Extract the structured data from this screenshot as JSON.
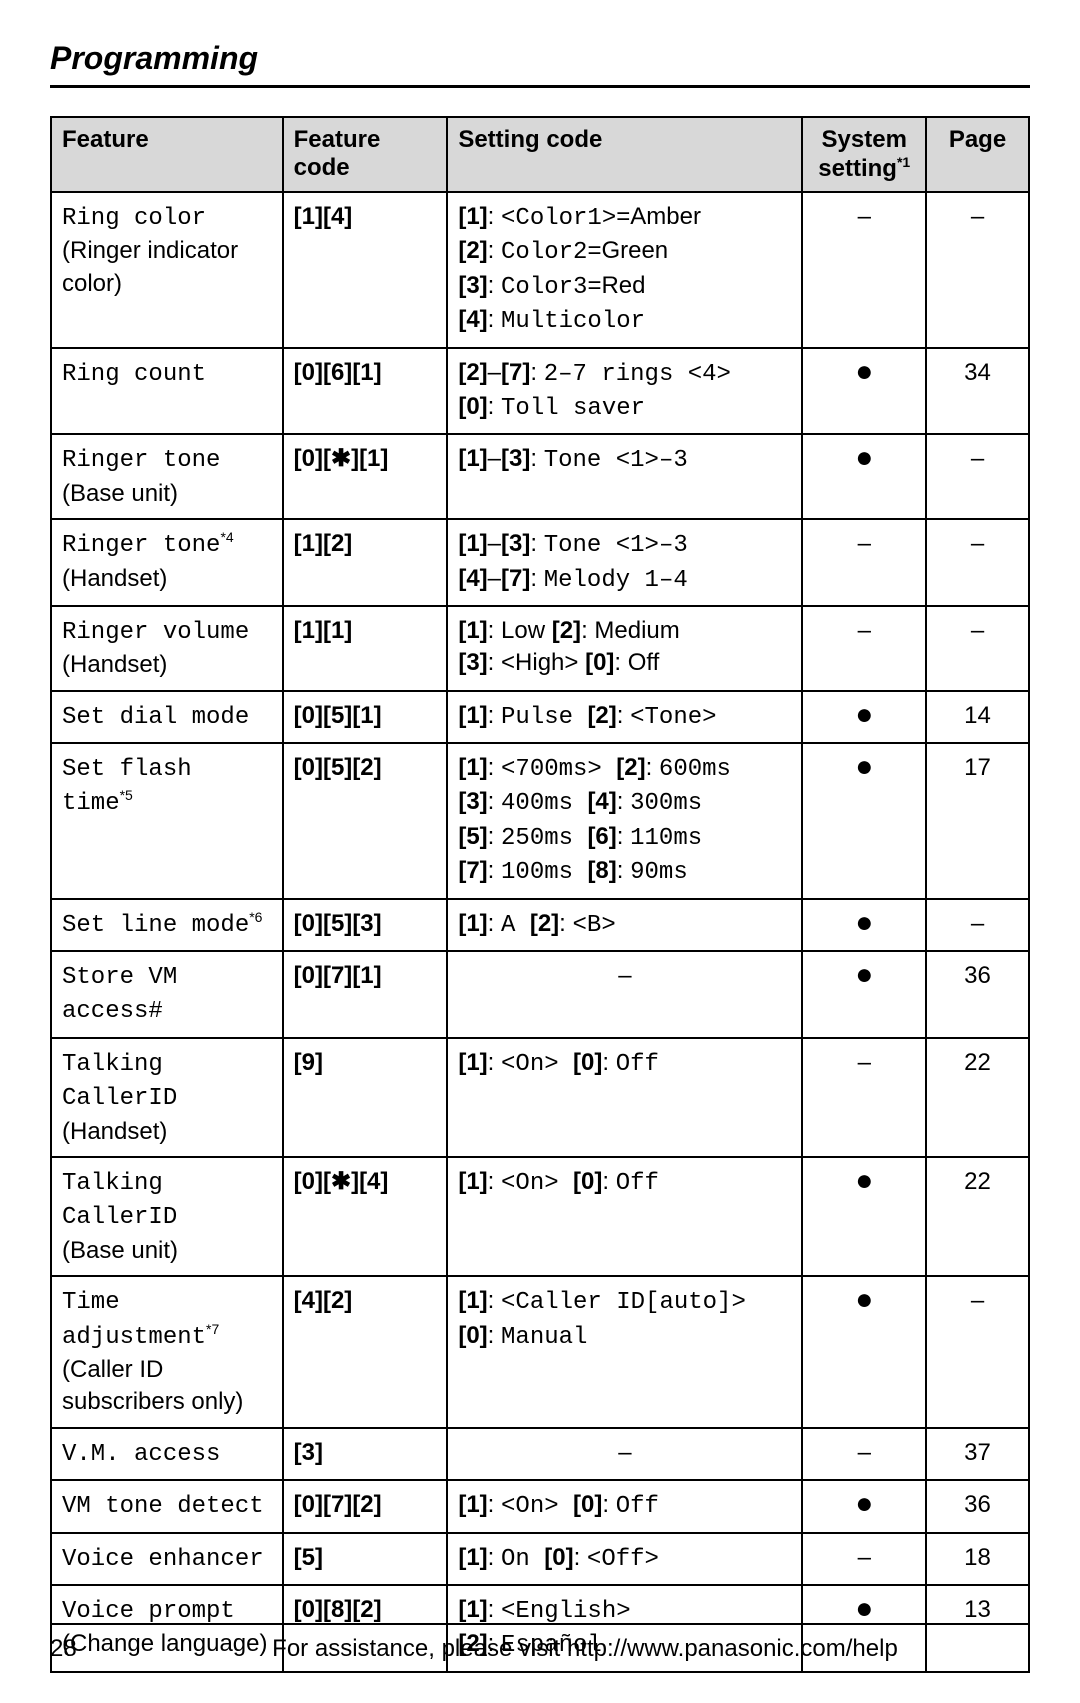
{
  "title": "Programming",
  "page_number": "28",
  "footer_text": "For assistance, please visit http://www.panasonic.com/help",
  "columns": {
    "feature": "Feature",
    "feature_code": "Feature code",
    "setting_code": "Setting code",
    "system_setting": "System setting",
    "system_setting_sup": "*1",
    "page": "Page"
  },
  "rows": [
    {
      "feature_mono": "Ring color",
      "feature_sans": "(Ringer indicator color)",
      "fcode_keys": "[1][4]",
      "setting_lines": [
        {
          "keys": "[1]",
          "colon": ": ",
          "mono": "<Color1>",
          "rest": "=Amber"
        },
        {
          "keys": "[2]",
          "colon": ": ",
          "mono": "Color2",
          "rest": "=Green"
        },
        {
          "keys": "[3]",
          "colon": ": ",
          "mono": "Color3",
          "rest": "=Red"
        },
        {
          "keys": "[4]",
          "colon": ": ",
          "mono": "Multicolor",
          "rest": ""
        }
      ],
      "system": "–",
      "page": "–"
    },
    {
      "feature_mono": "Ring count",
      "feature_sans": "",
      "fcode_keys": "[0][6][1]",
      "setting_lines": [
        {
          "keys": "[2]–[7]",
          "colon": ": ",
          "mono": "2–7 rings <4>",
          "rest": ""
        },
        {
          "keys": "[0]",
          "colon": ": ",
          "mono": "Toll saver",
          "rest": ""
        }
      ],
      "system": "●",
      "page": "34"
    },
    {
      "feature_mono": "Ringer tone",
      "feature_sans": "(Base unit)",
      "fcode_keys": "[0][✱][1]",
      "setting_lines": [
        {
          "keys": "[1]–[3]",
          "colon": ": ",
          "mono": "Tone <1>–3",
          "rest": ""
        }
      ],
      "system": "●",
      "page": "–"
    },
    {
      "feature_mono": "Ringer tone",
      "feature_sup": "*4",
      "feature_sans": "(Handset)",
      "fcode_keys": "[1][2]",
      "setting_lines": [
        {
          "keys": "[1]–[3]",
          "colon": ": ",
          "mono": "Tone <1>–3",
          "rest": ""
        },
        {
          "keys": "[4]–[7]",
          "colon": ": ",
          "mono": "Melody 1–4",
          "rest": ""
        }
      ],
      "system": "–",
      "page": "–"
    },
    {
      "feature_mono": "Ringer volume",
      "feature_sans": "(Handset)",
      "fcode_keys": "[1][1]",
      "setting_lines": [
        {
          "keys": "[1]",
          "colon": ": ",
          "mono": "",
          "rest": "Low ",
          "keys2": "[2]",
          "colon2": ": ",
          "rest2": "Medium"
        },
        {
          "keys": "[3]",
          "colon": ": ",
          "mono": "",
          "rest": "<High> ",
          "keys2": "[0]",
          "colon2": ": ",
          "rest2": "Off"
        }
      ],
      "system": "–",
      "page": "–"
    },
    {
      "feature_mono": "Set dial mode",
      "feature_sans": "",
      "fcode_keys": "[0][5][1]",
      "setting_lines": [
        {
          "keys": "[1]",
          "colon": ": ",
          "mono": "Pulse ",
          "rest": "",
          "keys2": "[2]",
          "colon2": ": ",
          "mono2": "<Tone>",
          "rest2": ""
        }
      ],
      "system": "●",
      "page": "14"
    },
    {
      "feature_mono": "Set flash time",
      "feature_sup": "*5",
      "feature_sans": "",
      "fcode_keys": "[0][5][2]",
      "setting_lines": [
        {
          "keys": "[1]",
          "colon": ": ",
          "mono": "<700ms> ",
          "rest": "",
          "keys2": "[2]",
          "colon2": ": ",
          "mono2": "600ms",
          "rest2": ""
        },
        {
          "keys": "[3]",
          "colon": ": ",
          "mono": "400ms ",
          "rest": "",
          "keys2": "[4]",
          "colon2": ": ",
          "mono2": "300ms",
          "rest2": ""
        },
        {
          "keys": "[5]",
          "colon": ": ",
          "mono": "250ms ",
          "rest": "",
          "keys2": "[6]",
          "colon2": ": ",
          "mono2": "110ms",
          "rest2": ""
        },
        {
          "keys": "[7]",
          "colon": ": ",
          "mono": "100ms ",
          "rest": "",
          "keys2": "[8]",
          "colon2": ": ",
          "mono2": "90ms",
          "rest2": ""
        }
      ],
      "system": "●",
      "page": "17"
    },
    {
      "feature_mono": "Set line mode",
      "feature_sup": "*6",
      "feature_sans": "",
      "fcode_keys": "[0][5][3]",
      "setting_lines": [
        {
          "keys": "[1]",
          "colon": ": ",
          "mono": "A ",
          "rest": "",
          "keys2": "[2]",
          "colon2": ": ",
          "mono2": "<B>",
          "rest2": ""
        }
      ],
      "system": "●",
      "page": "–"
    },
    {
      "feature_mono": "Store VM access#",
      "feature_sans": "",
      "fcode_keys": "[0][7][1]",
      "setting_plain": "–",
      "system": "●",
      "page": "36"
    },
    {
      "feature_mono": "Talking CallerID",
      "feature_sans": "(Handset)",
      "fcode_keys": "[9]",
      "setting_lines": [
        {
          "keys": "[1]",
          "colon": ": ",
          "mono": "<On> ",
          "rest": "",
          "keys2": "[0]",
          "colon2": ": ",
          "mono2": "Off",
          "rest2": ""
        }
      ],
      "system": "–",
      "page": "22"
    },
    {
      "feature_mono": "Talking CallerID",
      "feature_sans": "(Base unit)",
      "fcode_keys": "[0][✱][4]",
      "setting_lines": [
        {
          "keys": "[1]",
          "colon": ": ",
          "mono": "<On> ",
          "rest": "",
          "keys2": "[0]",
          "colon2": ": ",
          "mono2": "Off",
          "rest2": ""
        }
      ],
      "system": "●",
      "page": "22"
    },
    {
      "feature_mono": "Time adjustment",
      "feature_sup": "*7",
      "feature_sans": "(Caller ID subscribers only)",
      "fcode_keys": "[4][2]",
      "setting_lines": [
        {
          "keys": "[1]",
          "colon": ": ",
          "mono": "<Caller ID[auto]>",
          "rest": ""
        },
        {
          "keys": "[0]",
          "colon": ": ",
          "mono": "Manual",
          "rest": ""
        }
      ],
      "system": "●",
      "page": "–"
    },
    {
      "feature_mono": "V.M. access",
      "feature_sans": "",
      "fcode_keys": "[3]",
      "setting_plain": "–",
      "system": "–",
      "page": "37"
    },
    {
      "feature_mono": "VM tone detect",
      "feature_sans": "",
      "fcode_keys": "[0][7][2]",
      "setting_lines": [
        {
          "keys": "[1]",
          "colon": ": ",
          "mono": "<On> ",
          "rest": "",
          "keys2": "[0]",
          "colon2": ": ",
          "mono2": "Off",
          "rest2": ""
        }
      ],
      "system": "●",
      "page": "36"
    },
    {
      "feature_mono": "Voice enhancer",
      "feature_sans": "",
      "fcode_keys": "[5]",
      "setting_lines": [
        {
          "keys": "[1]",
          "colon": ": ",
          "mono": "On ",
          "rest": "",
          "keys2": "[0]",
          "colon2": ": ",
          "mono2": "<Off>",
          "rest2": ""
        }
      ],
      "system": "–",
      "page": "18"
    },
    {
      "feature_mono": "Voice prompt",
      "feature_sans": "(Change language)",
      "fcode_keys": "[0][8][2]",
      "setting_lines": [
        {
          "keys": "[1]",
          "colon": ": ",
          "mono": "<English>",
          "rest": ""
        },
        {
          "keys": "[2]",
          "colon": ": ",
          "mono": "Español",
          "rest": ""
        }
      ],
      "system": "●",
      "page": "13"
    }
  ]
}
